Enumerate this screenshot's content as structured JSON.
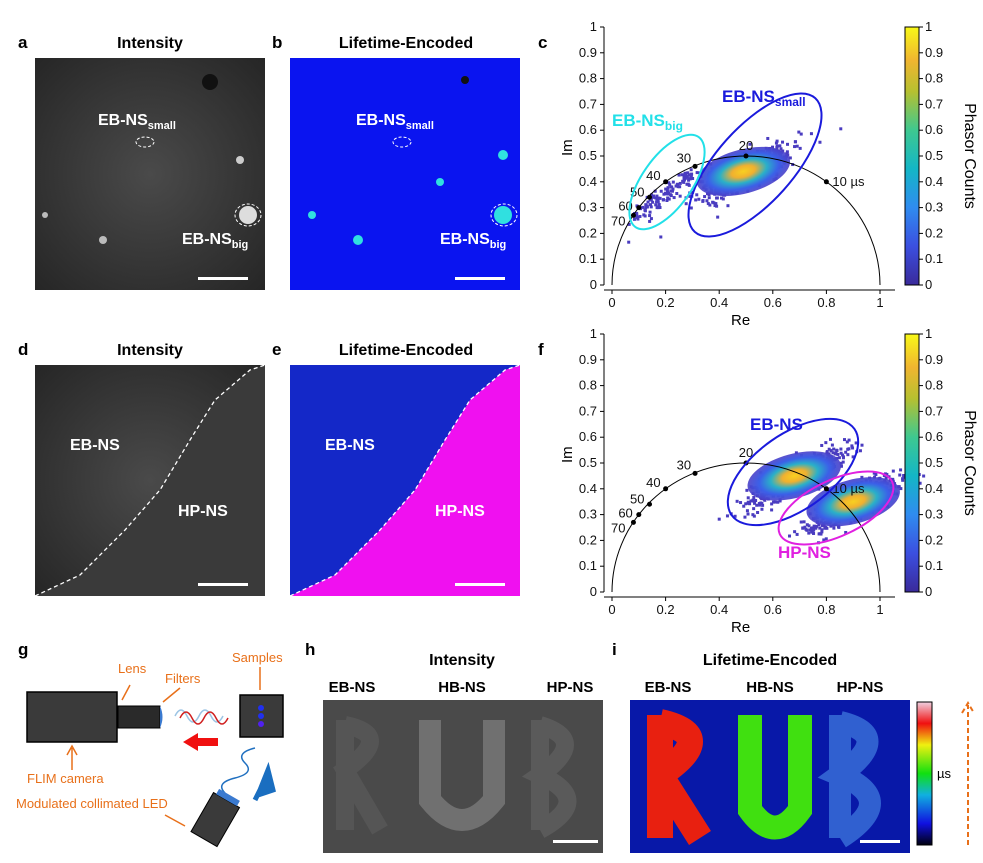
{
  "panels": {
    "a": {
      "label": "a",
      "title": "Intensity",
      "annotations": [
        "EB-NS",
        "small",
        "EB-NS",
        "big"
      ]
    },
    "b": {
      "label": "b",
      "title": "Lifetime-Encoded",
      "annotations": [
        "EB-NS",
        "small",
        "EB-NS",
        "big"
      ]
    },
    "c": {
      "label": "c"
    },
    "d": {
      "label": "d",
      "title": "Intensity",
      "annotations": [
        "EB-NS",
        "HP-NS"
      ]
    },
    "e": {
      "label": "e",
      "title": "Lifetime-Encoded",
      "annotations": [
        "EB-NS",
        "HP-NS"
      ]
    },
    "f": {
      "label": "f"
    },
    "g": {
      "label": "g",
      "parts": [
        "Lens",
        "Filters",
        "Samples",
        "FLIM camera",
        "Modulated collimated LED"
      ]
    },
    "h": {
      "label": "h",
      "title": "Intensity",
      "samples": [
        "EB-NS",
        "HB-NS",
        "HP-NS"
      ]
    },
    "i": {
      "label": "i",
      "title": "Lifetime-Encoded",
      "samples": [
        "EB-NS",
        "HB-NS",
        "HP-NS"
      ],
      "colorbar_unit": "µs",
      "letters": [
        "R",
        "U",
        "B"
      ]
    }
  },
  "colors": {
    "eb_small": "#1a1adc",
    "eb_big": "#22e0e8",
    "hp": "#e020e0",
    "annot_orange": "#e8701a"
  },
  "chart_data": [
    {
      "type": "scatter",
      "panel": "c",
      "xlabel": "Re",
      "ylabel": "Im",
      "xlim": [
        0,
        1
      ],
      "ylim": [
        0,
        1
      ],
      "xticks": [
        "0",
        "0.2",
        "0.4",
        "0.6",
        "0.8",
        "1"
      ],
      "yticks": [
        "0",
        "0.1",
        "0.2",
        "0.3",
        "0.4",
        "0.5",
        "0.6",
        "0.7",
        "0.8",
        "0.9",
        "1"
      ],
      "universal_circle_points": [
        {
          "label": "10 µs",
          "re": 0.8,
          "im": 0.4
        },
        {
          "label": "20",
          "re": 0.5,
          "im": 0.5
        },
        {
          "label": "30",
          "re": 0.31,
          "im": 0.46
        },
        {
          "label": "40",
          "re": 0.2,
          "im": 0.4
        },
        {
          "label": "50",
          "re": 0.14,
          "im": 0.34
        },
        {
          "label": "60",
          "re": 0.1,
          "im": 0.3
        },
        {
          "label": "70",
          "re": 0.08,
          "im": 0.27
        }
      ],
      "clusters": [
        {
          "name": "EB-NS",
          "sub": "small",
          "color": "#1a1adc",
          "center": [
            0.49,
            0.44
          ]
        },
        {
          "name": "EB-NS",
          "sub": "big",
          "color": "#22e0e8",
          "center": [
            0.18,
            0.36
          ]
        }
      ],
      "colorbar": {
        "label": "Phasor Counts",
        "ticks": [
          "0",
          "0.1",
          "0.2",
          "0.3",
          "0.4",
          "0.5",
          "0.6",
          "0.7",
          "0.8",
          "0.9",
          "1"
        ]
      }
    },
    {
      "type": "scatter",
      "panel": "f",
      "xlabel": "Re",
      "ylabel": "Im",
      "xlim": [
        0,
        1
      ],
      "ylim": [
        0,
        1
      ],
      "xticks": [
        "0",
        "0.2",
        "0.4",
        "0.6",
        "0.8",
        "1"
      ],
      "yticks": [
        "0",
        "0.1",
        "0.2",
        "0.3",
        "0.4",
        "0.5",
        "0.6",
        "0.7",
        "0.8",
        "0.9",
        "1"
      ],
      "universal_circle_points": [
        {
          "label": "10 µs",
          "re": 0.8,
          "im": 0.4
        },
        {
          "label": "20",
          "re": 0.5,
          "im": 0.5
        },
        {
          "label": "30",
          "re": 0.31,
          "im": 0.46
        },
        {
          "label": "40",
          "re": 0.2,
          "im": 0.4
        },
        {
          "label": "50",
          "re": 0.14,
          "im": 0.34
        },
        {
          "label": "60",
          "re": 0.1,
          "im": 0.3
        },
        {
          "label": "70",
          "re": 0.08,
          "im": 0.27
        }
      ],
      "clusters": [
        {
          "name": "EB-NS",
          "color": "#1a1adc",
          "center": [
            0.68,
            0.45
          ]
        },
        {
          "name": "HP-NS",
          "color": "#e020e0",
          "center": [
            0.9,
            0.35
          ]
        }
      ],
      "colorbar": {
        "label": "Phasor Counts",
        "ticks": [
          "0",
          "0.1",
          "0.2",
          "0.3",
          "0.4",
          "0.5",
          "0.6",
          "0.7",
          "0.8",
          "0.9",
          "1"
        ]
      }
    }
  ]
}
